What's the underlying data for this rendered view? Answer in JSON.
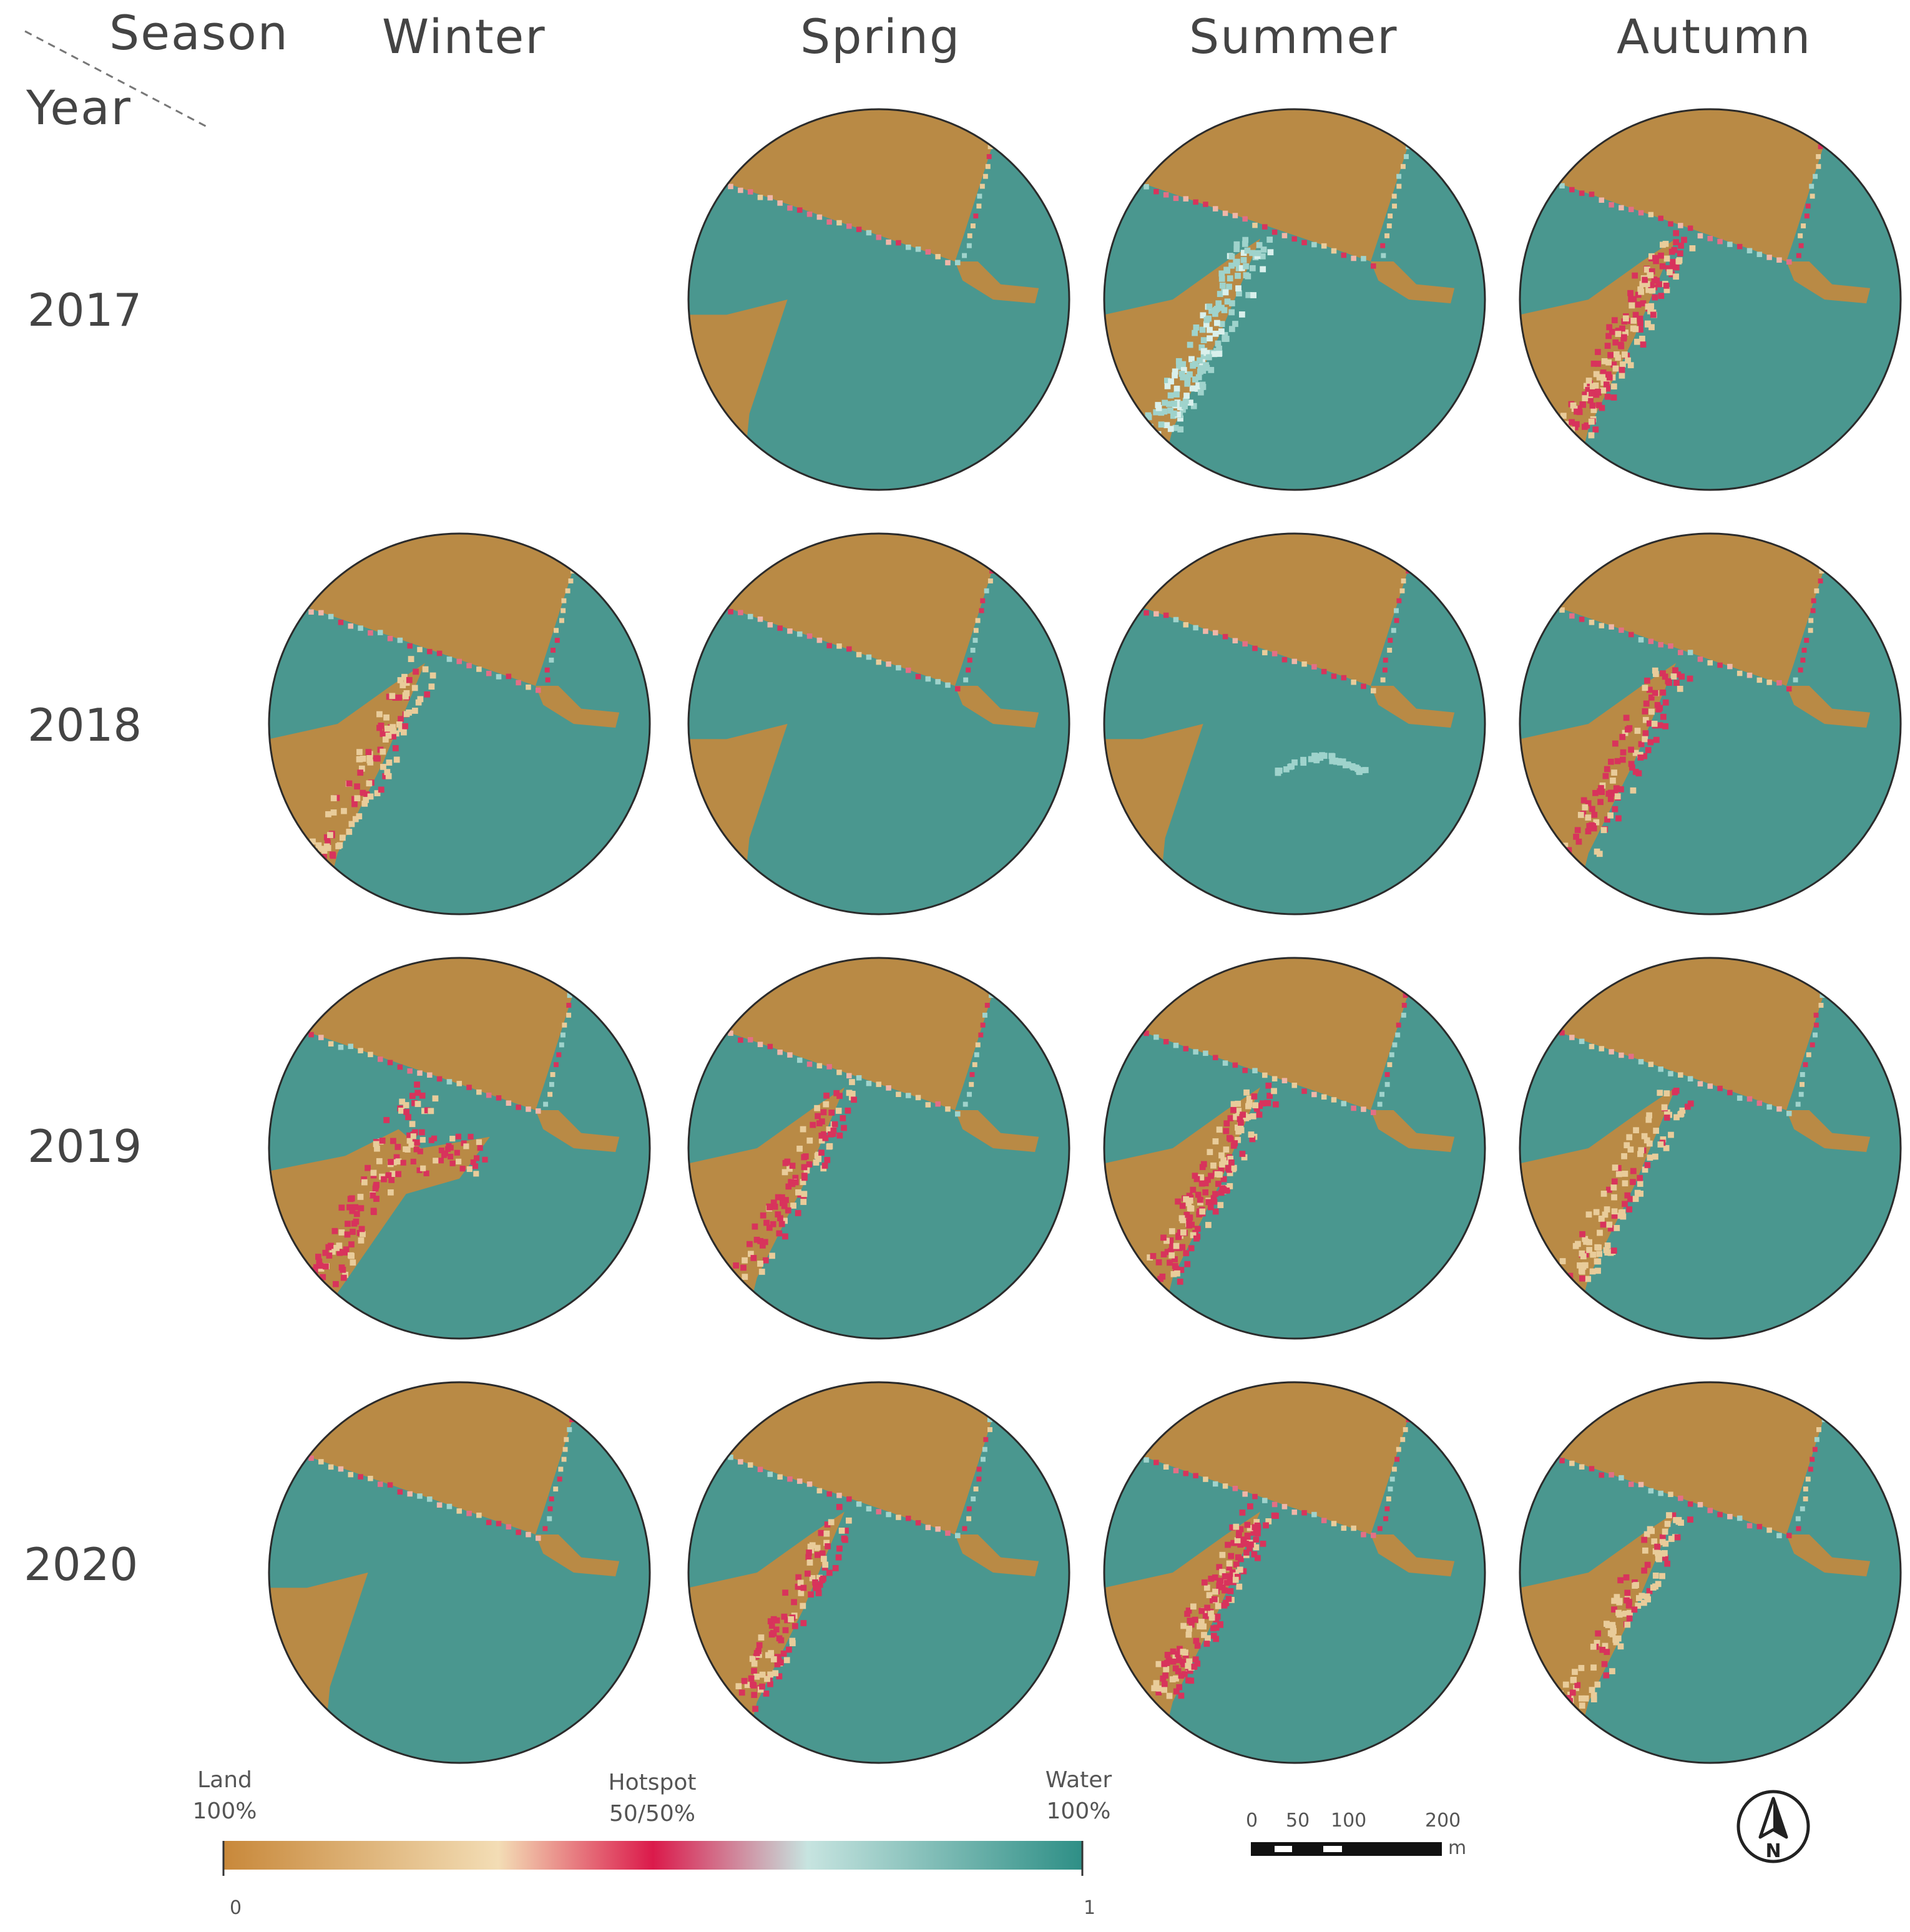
{
  "header": {
    "corner_season": "Season",
    "corner_year": "Year",
    "seasons": [
      "Winter",
      "Spring",
      "Summer",
      "Autumn"
    ],
    "years": [
      "2017",
      "2018",
      "2019",
      "2020"
    ]
  },
  "maps": [
    {
      "year": "2017",
      "season": "Winter",
      "present": false,
      "variant": "none"
    },
    {
      "year": "2017",
      "season": "Spring",
      "present": true,
      "variant": "low"
    },
    {
      "year": "2017",
      "season": "Summer",
      "present": true,
      "variant": "cyan-band"
    },
    {
      "year": "2017",
      "season": "Autumn",
      "present": true,
      "variant": "hot-band"
    },
    {
      "year": "2018",
      "season": "Winter",
      "present": true,
      "variant": "sand-tongue"
    },
    {
      "year": "2018",
      "season": "Spring",
      "present": true,
      "variant": "low"
    },
    {
      "year": "2018",
      "season": "Summer",
      "present": true,
      "variant": "low-arc"
    },
    {
      "year": "2018",
      "season": "Autumn",
      "present": true,
      "variant": "hot-tongue"
    },
    {
      "year": "2019",
      "season": "Winter",
      "present": true,
      "variant": "hot-spit"
    },
    {
      "year": "2019",
      "season": "Spring",
      "present": true,
      "variant": "hot-tongue"
    },
    {
      "year": "2019",
      "season": "Summer",
      "present": true,
      "variant": "hot-band"
    },
    {
      "year": "2019",
      "season": "Autumn",
      "present": true,
      "variant": "sand-tongue"
    },
    {
      "year": "2020",
      "season": "Winter",
      "present": true,
      "variant": "low"
    },
    {
      "year": "2020",
      "season": "Spring",
      "present": true,
      "variant": "hot-tongue"
    },
    {
      "year": "2020",
      "season": "Summer",
      "present": true,
      "variant": "hot-band"
    },
    {
      "year": "2020",
      "season": "Autumn",
      "present": true,
      "variant": "sand-tongue"
    }
  ],
  "legend": {
    "land_label": "Land",
    "land_pct": "100%",
    "hotspot_label": "Hotspot",
    "hotspot_pct": "50/50%",
    "water_label": "Water",
    "water_pct": "100%",
    "min": "0",
    "max": "1",
    "colors": [
      "#c8883a",
      "#f3ddb5",
      "#db1a4b",
      "#c7e4e0",
      "#2e8f86"
    ]
  },
  "scale_bar": {
    "ticks": [
      "0",
      "50",
      "100",
      "200"
    ],
    "unit": "m"
  },
  "north_arrow": {
    "label": "N"
  },
  "colors": {
    "land": "#b98a45",
    "water": "#4a978f",
    "hotspot": "#d8335c",
    "sand": "#e9cc9a",
    "foam": "#9fd3cc",
    "outline": "#2b2b2b"
  }
}
